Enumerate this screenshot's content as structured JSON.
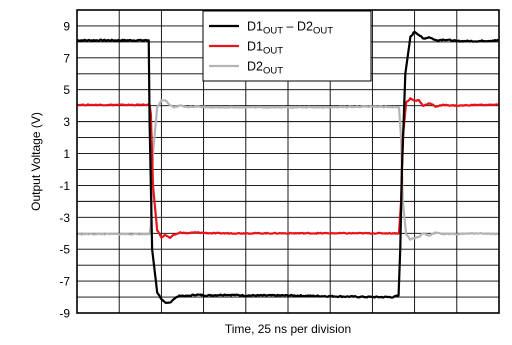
{
  "chart_data": {
    "type": "line",
    "xlabel": "Time, 25 ns per division",
    "ylabel": "Output Voltage (V)",
    "ylim": [
      -9,
      10
    ],
    "xlim": [
      0,
      10
    ],
    "yticks": [
      "9",
      "7",
      "5",
      "3",
      "1",
      "-1",
      "-3",
      "-5",
      "-7",
      "-9"
    ],
    "grid": true,
    "legend_position": "top-right",
    "legend_entries": [
      {
        "parts": [
          {
            "t": "D1",
            "sub": "OUT"
          },
          {
            "t": " – D2",
            "sub": "OUT"
          }
        ]
      },
      {
        "parts": [
          {
            "t": "D1",
            "sub": "OUT"
          }
        ]
      },
      {
        "parts": [
          {
            "t": "D2",
            "sub": "OUT"
          }
        ]
      }
    ],
    "series": [
      {
        "color": "#000000",
        "x": [
          0,
          1.7,
          1.72,
          1.78,
          1.9,
          2.02,
          2.1,
          2.2,
          2.3,
          2.45,
          2.6,
          2.8,
          3.1,
          3.5,
          4,
          5,
          6,
          7,
          7.5,
          7.62,
          7.66,
          7.7,
          7.78,
          7.9,
          8.0,
          8.1,
          8.2,
          8.35,
          8.5,
          8.7,
          9,
          9.5,
          10
        ],
        "y": [
          8.1,
          8.1,
          3,
          -5,
          -7.7,
          -8.2,
          -8.4,
          -8.35,
          -8.1,
          -7.9,
          -7.95,
          -7.85,
          -7.9,
          -7.85,
          -7.9,
          -7.9,
          -7.95,
          -8.0,
          -8.0,
          -7.9,
          -5,
          0,
          6,
          8.3,
          8.65,
          8.45,
          8.2,
          8.3,
          8.1,
          8.15,
          8.05,
          8.05,
          8.1
        ],
        "noise": 0.04
      },
      {
        "color": "#e8141b",
        "x": [
          0,
          1.72,
          1.75,
          1.8,
          1.9,
          2.0,
          2.1,
          2.2,
          2.3,
          2.45,
          2.6,
          2.8,
          3.2,
          4,
          5,
          6,
          7,
          7.63,
          7.68,
          7.72,
          7.8,
          7.9,
          8.0,
          8.1,
          8.2,
          8.35,
          8.5,
          8.7,
          9,
          9.5,
          10
        ],
        "y": [
          4.05,
          4.05,
          3.5,
          -1,
          -3.8,
          -4.25,
          -4.1,
          -4.3,
          -4.1,
          -3.95,
          -4.0,
          -3.95,
          -4.0,
          -4.0,
          -4.0,
          -4.0,
          -4.0,
          -4.0,
          -2,
          2,
          4.2,
          4.45,
          4.3,
          4.35,
          4.0,
          4.15,
          3.95,
          4.05,
          4.0,
          4.05,
          4.05
        ],
        "noise": 0.03
      },
      {
        "color": "#b4b4b4",
        "x": [
          0,
          1.72,
          1.75,
          1.8,
          1.9,
          2.0,
          2.1,
          2.2,
          2.3,
          2.45,
          2.6,
          2.8,
          3.2,
          4,
          5,
          6,
          7,
          7.63,
          7.68,
          7.72,
          7.8,
          7.9,
          8.0,
          8.1,
          8.2,
          8.35,
          8.5,
          8.7,
          9,
          9.5,
          10
        ],
        "y": [
          -4.05,
          -4.05,
          -3.5,
          1,
          3.9,
          4.35,
          4.3,
          4.05,
          3.9,
          4.0,
          3.9,
          3.95,
          3.9,
          3.9,
          3.9,
          3.9,
          3.95,
          3.9,
          2,
          -2,
          -4.05,
          -4.4,
          -4.3,
          -4.25,
          -4.0,
          -4.15,
          -3.95,
          -4.05,
          -4.05,
          -4.0,
          -4.05
        ],
        "noise": 0.03
      }
    ]
  }
}
